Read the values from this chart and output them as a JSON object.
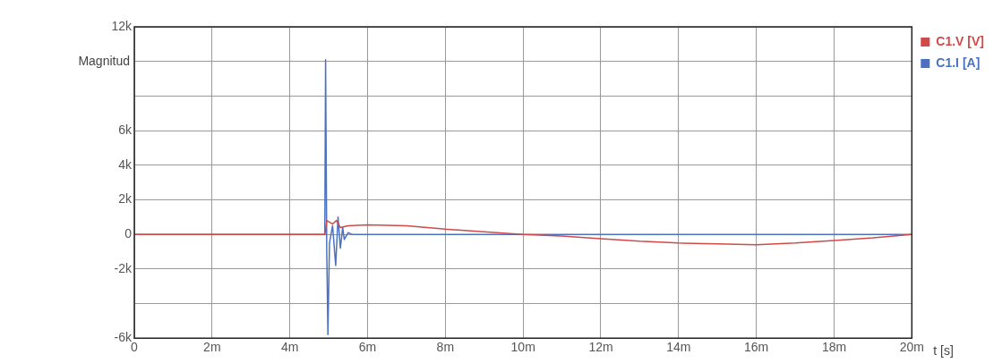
{
  "chart_data": {
    "type": "line",
    "xlabel": "t [s]",
    "ylabel": "Magnitud",
    "xlim": [
      0,
      20
    ],
    "xticks": [
      0,
      {
        "value": 2,
        "label": "2m"
      },
      {
        "value": 4,
        "label": "4m"
      },
      {
        "value": 6,
        "label": "6m"
      },
      {
        "value": 8,
        "label": "8m"
      },
      {
        "value": 10,
        "label": "10m"
      },
      {
        "value": 12,
        "label": "12m"
      },
      {
        "value": 14,
        "label": "14m"
      },
      {
        "value": 16,
        "label": "16m"
      },
      {
        "value": 18,
        "label": "18m"
      },
      {
        "value": 20,
        "label": "20m"
      }
    ],
    "ylim": [
      -6000,
      12000
    ],
    "yticks": [
      {
        "value": -6000,
        "label": "-6k"
      },
      {
        "value": -4000,
        "label": null
      },
      {
        "value": -2000,
        "label": "-2k"
      },
      0,
      {
        "value": 2000,
        "label": "2k"
      },
      {
        "value": 4000,
        "label": "4k"
      },
      {
        "value": 6000,
        "label": "6k"
      },
      {
        "value": 8000,
        "label": null
      },
      {
        "value": 10000,
        "label": null
      },
      {
        "value": 12000,
        "label": "12k"
      }
    ],
    "grid": true,
    "legend": "top right",
    "marker": "none",
    "line_style": "solid",
    "series": [
      {
        "name": "C1.V [V]",
        "color": "#d04a4a",
        "x": [
          0,
          4.9,
          4.95,
          5.1,
          5.2,
          5.3,
          5.5,
          6,
          7,
          8,
          9,
          10,
          11,
          12,
          13,
          14,
          15,
          16,
          17,
          18,
          19,
          20
        ],
        "values": [
          0,
          0,
          800,
          600,
          800,
          400,
          500,
          550,
          500,
          300,
          150,
          0,
          -100,
          -250,
          -400,
          -500,
          -550,
          -600,
          -500,
          -350,
          -200,
          0
        ]
      },
      {
        "name": "C1.I [A]",
        "color": "#4a72c0",
        "x": [
          0,
          4.9,
          4.92,
          4.95,
          4.98,
          5.02,
          5.1,
          5.18,
          5.24,
          5.3,
          5.36,
          5.4,
          5.5,
          5.6,
          20
        ],
        "values": [
          0,
          0,
          10100,
          -1000,
          -5800,
          -500,
          500,
          -1800,
          1000,
          -800,
          400,
          -300,
          100,
          0,
          0
        ]
      }
    ]
  }
}
